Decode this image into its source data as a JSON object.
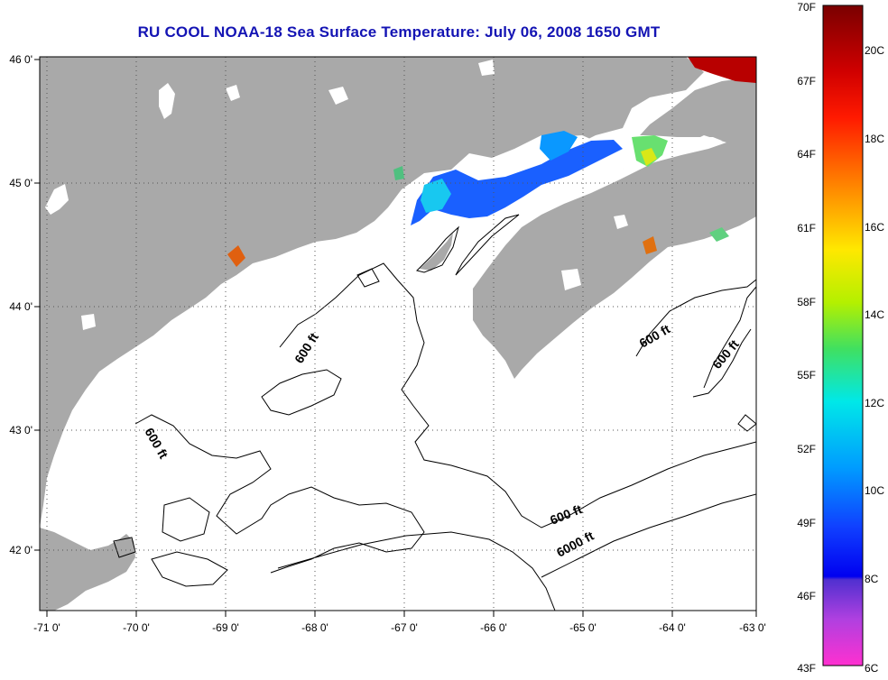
{
  "title": "RU COOL  NOAA-18  Sea Surface Temperature:  July 06, 2008 1650 GMT",
  "colors": {
    "land": "#a9a9a9",
    "ocean": "#ffffff",
    "contour": "#000000",
    "title": "#1414b4"
  },
  "axes": {
    "lon_ticks": [
      "-71 0'",
      "-70 0'",
      "-69 0'",
      "-68 0'",
      "-67 0'",
      "-66 0'",
      "-65 0'",
      "-64 0'",
      "-63 0'"
    ],
    "lat_ticks": [
      "46 0'",
      "45 0'",
      "44 0'",
      "43 0'",
      "42 0'"
    ]
  },
  "contour_labels": [
    "600 ft",
    "600 ft",
    "600 ft",
    "600 ft",
    "600 ft",
    "6000 ft"
  ],
  "colorbar": {
    "fahrenheit_ticks": [
      "70F",
      "67F",
      "64F",
      "61F",
      "58F",
      "55F",
      "52F",
      "49F",
      "46F",
      "43F"
    ],
    "celsius_ticks": [
      "20C",
      "18C",
      "16C",
      "14C",
      "12C",
      "10C",
      "8C",
      "6C"
    ]
  }
}
